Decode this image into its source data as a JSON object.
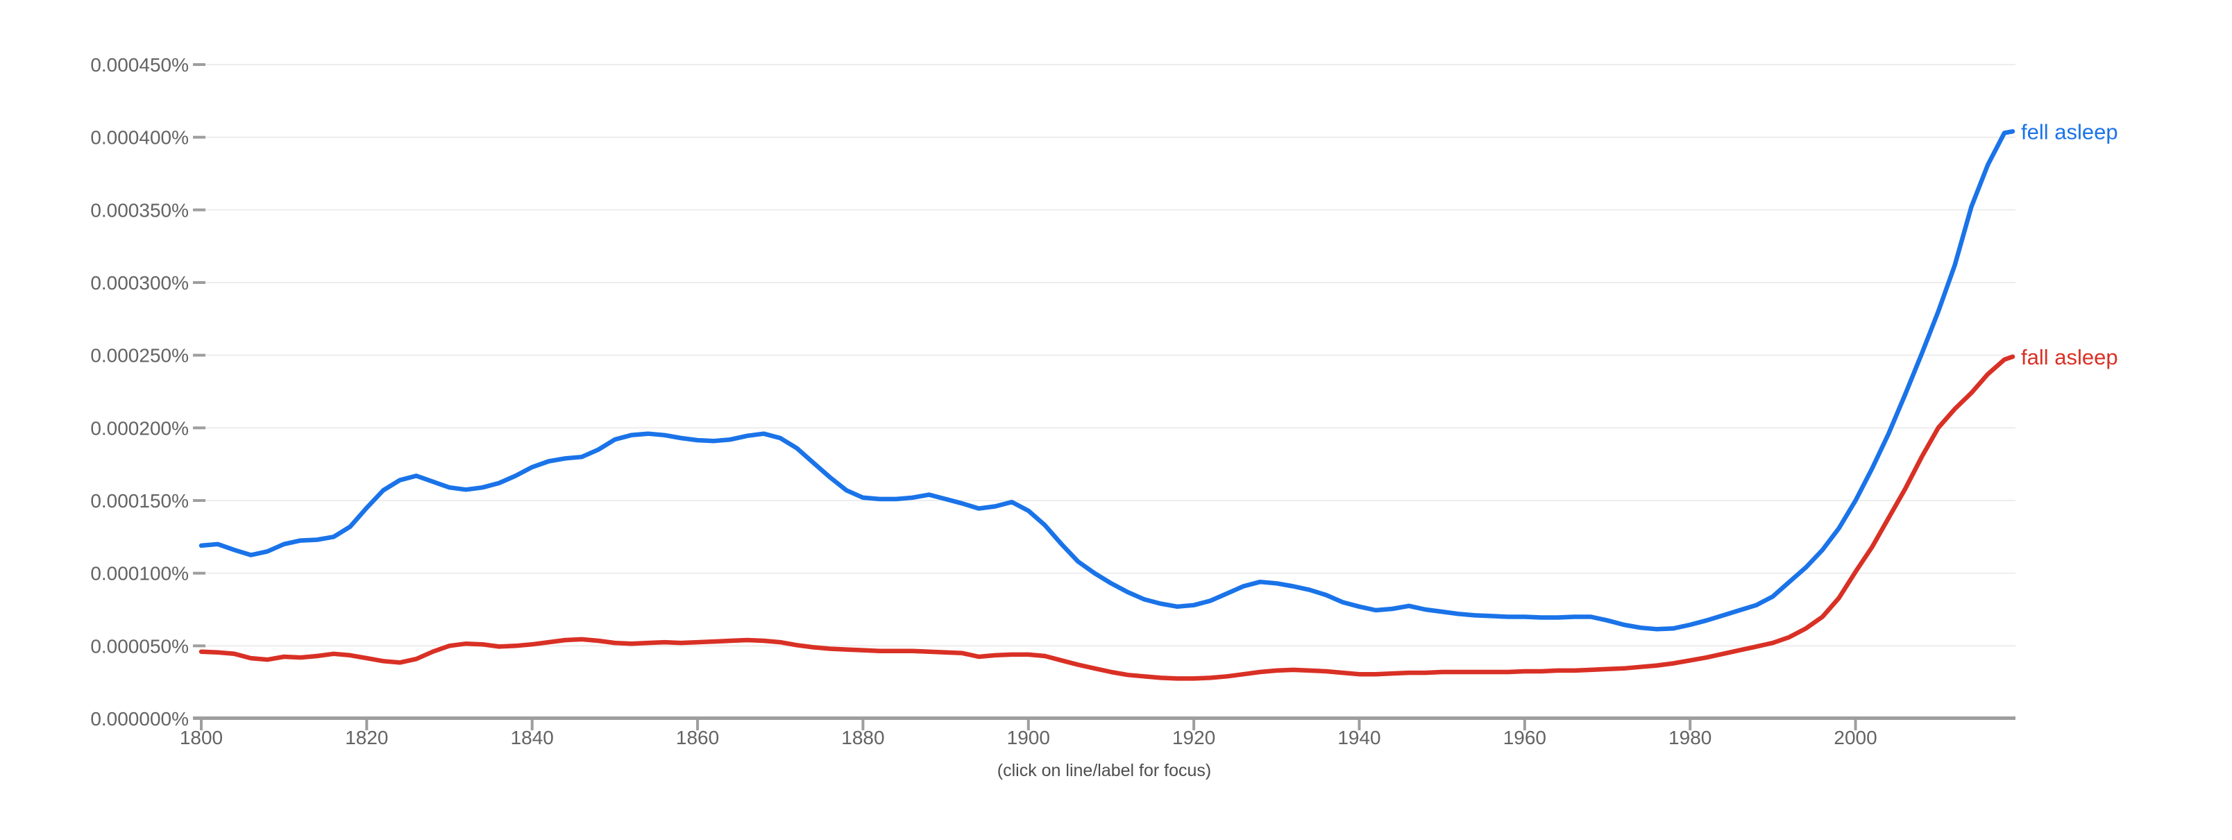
{
  "page": {
    "background_color": "#ffffff"
  },
  "chart_data": {
    "type": "line",
    "title": "",
    "xlabel": "",
    "ylabel": "",
    "footnote": "(click on line/label for focus)",
    "grid": true,
    "legend_position": "end-of-line-labels",
    "x_axis": {
      "start_year": 1800,
      "end_year": 2019,
      "tick_years": [
        1800,
        1820,
        1840,
        1860,
        1880,
        1900,
        1920,
        1940,
        1960,
        1980,
        2000
      ],
      "axis_color": "#9e9e9e",
      "tick_label_color": "#636363"
    },
    "y_axis": {
      "unit": "percent-millionths (value 50 = 0.000050%)",
      "min": 0,
      "max": 450,
      "gridline_color": "#ededed",
      "tick_label_color": "#636363",
      "ticks": [
        {
          "value": 0,
          "label": "0.000000%"
        },
        {
          "value": 50,
          "label": "0.000050%"
        },
        {
          "value": 100,
          "label": "0.000100%"
        },
        {
          "value": 150,
          "label": "0.000150%"
        },
        {
          "value": 200,
          "label": "0.000200%"
        },
        {
          "value": 250,
          "label": "0.000250%"
        },
        {
          "value": 300,
          "label": "0.000300%"
        },
        {
          "value": 350,
          "label": "0.000350%"
        },
        {
          "value": 400,
          "label": "0.000400%"
        },
        {
          "value": 450,
          "label": "0.000450%"
        }
      ]
    },
    "years": [
      1800,
      1802,
      1804,
      1806,
      1808,
      1810,
      1812,
      1814,
      1816,
      1818,
      1820,
      1822,
      1824,
      1826,
      1828,
      1830,
      1832,
      1834,
      1836,
      1838,
      1840,
      1842,
      1844,
      1846,
      1848,
      1850,
      1852,
      1854,
      1856,
      1858,
      1860,
      1862,
      1864,
      1866,
      1868,
      1870,
      1872,
      1874,
      1876,
      1878,
      1880,
      1882,
      1884,
      1886,
      1888,
      1890,
      1892,
      1894,
      1896,
      1898,
      1900,
      1902,
      1904,
      1906,
      1908,
      1910,
      1912,
      1914,
      1916,
      1918,
      1920,
      1922,
      1924,
      1926,
      1928,
      1930,
      1932,
      1934,
      1936,
      1938,
      1940,
      1942,
      1944,
      1946,
      1948,
      1950,
      1952,
      1954,
      1956,
      1958,
      1960,
      1962,
      1964,
      1966,
      1968,
      1970,
      1972,
      1974,
      1976,
      1978,
      1980,
      1982,
      1984,
      1986,
      1988,
      1990,
      1992,
      1994,
      1996,
      1998,
      2000,
      2002,
      2004,
      2006,
      2008,
      2010,
      2012,
      2014,
      2016,
      2018,
      2019
    ],
    "series": [
      {
        "name": "fell asleep",
        "color": "#1a73e8",
        "values": [
          119,
          120,
          116,
          112.5,
          115,
          120,
          122.5,
          123,
          125,
          132,
          145,
          157,
          164,
          167,
          163,
          159,
          157.5,
          159,
          162,
          167,
          173,
          177,
          179,
          180,
          185,
          192,
          195,
          196,
          195,
          193,
          191.5,
          191,
          192,
          194.5,
          196,
          193,
          186,
          176,
          166,
          157,
          152,
          151,
          151,
          152,
          154,
          151,
          148,
          144.5,
          146,
          149,
          143,
          133,
          120,
          108,
          100,
          93,
          87,
          82,
          79,
          77,
          78,
          81,
          86,
          91,
          94,
          93,
          91,
          88.5,
          85,
          80,
          77,
          74.5,
          75.5,
          77.5,
          75,
          73.5,
          72,
          71,
          70.5,
          70,
          70,
          69.5,
          69.5,
          70,
          70,
          67.5,
          64.5,
          62.5,
          61.5,
          62,
          64.5,
          67.5,
          71,
          74.5,
          78,
          84,
          94,
          104,
          116,
          131,
          150,
          172,
          196,
          223,
          251,
          280,
          312,
          352,
          381,
          403,
          404
        ]
      },
      {
        "name": "fall asleep",
        "color": "#d93025",
        "values": [
          46,
          45.5,
          44.5,
          41.5,
          40.5,
          42.5,
          42,
          43,
          44.5,
          43.5,
          41.5,
          39.5,
          38.5,
          41,
          46,
          50,
          51.5,
          51,
          49.5,
          50,
          51,
          52.5,
          54,
          54.5,
          53.5,
          52,
          51.5,
          52,
          52.5,
          52,
          52.5,
          53,
          53.5,
          54,
          53.5,
          52.5,
          50.5,
          49,
          48,
          47.5,
          47,
          46.5,
          46.5,
          46.5,
          46,
          45.5,
          45,
          42.5,
          43.5,
          44,
          44,
          43,
          40,
          37,
          34.5,
          32,
          30,
          29,
          28,
          27.5,
          27.5,
          28,
          29,
          30.5,
          32,
          33,
          33.5,
          33,
          32.5,
          31.5,
          30.5,
          30.5,
          31,
          31.5,
          31.5,
          32,
          32,
          32,
          32,
          32,
          32.5,
          32.5,
          33,
          33,
          33.5,
          34,
          34.5,
          35.5,
          36.5,
          38,
          40,
          42,
          44.5,
          47,
          49.5,
          52,
          56,
          62,
          70,
          83,
          101,
          118,
          138,
          158,
          180,
          200,
          213,
          224,
          237,
          247,
          249
        ]
      }
    ]
  }
}
